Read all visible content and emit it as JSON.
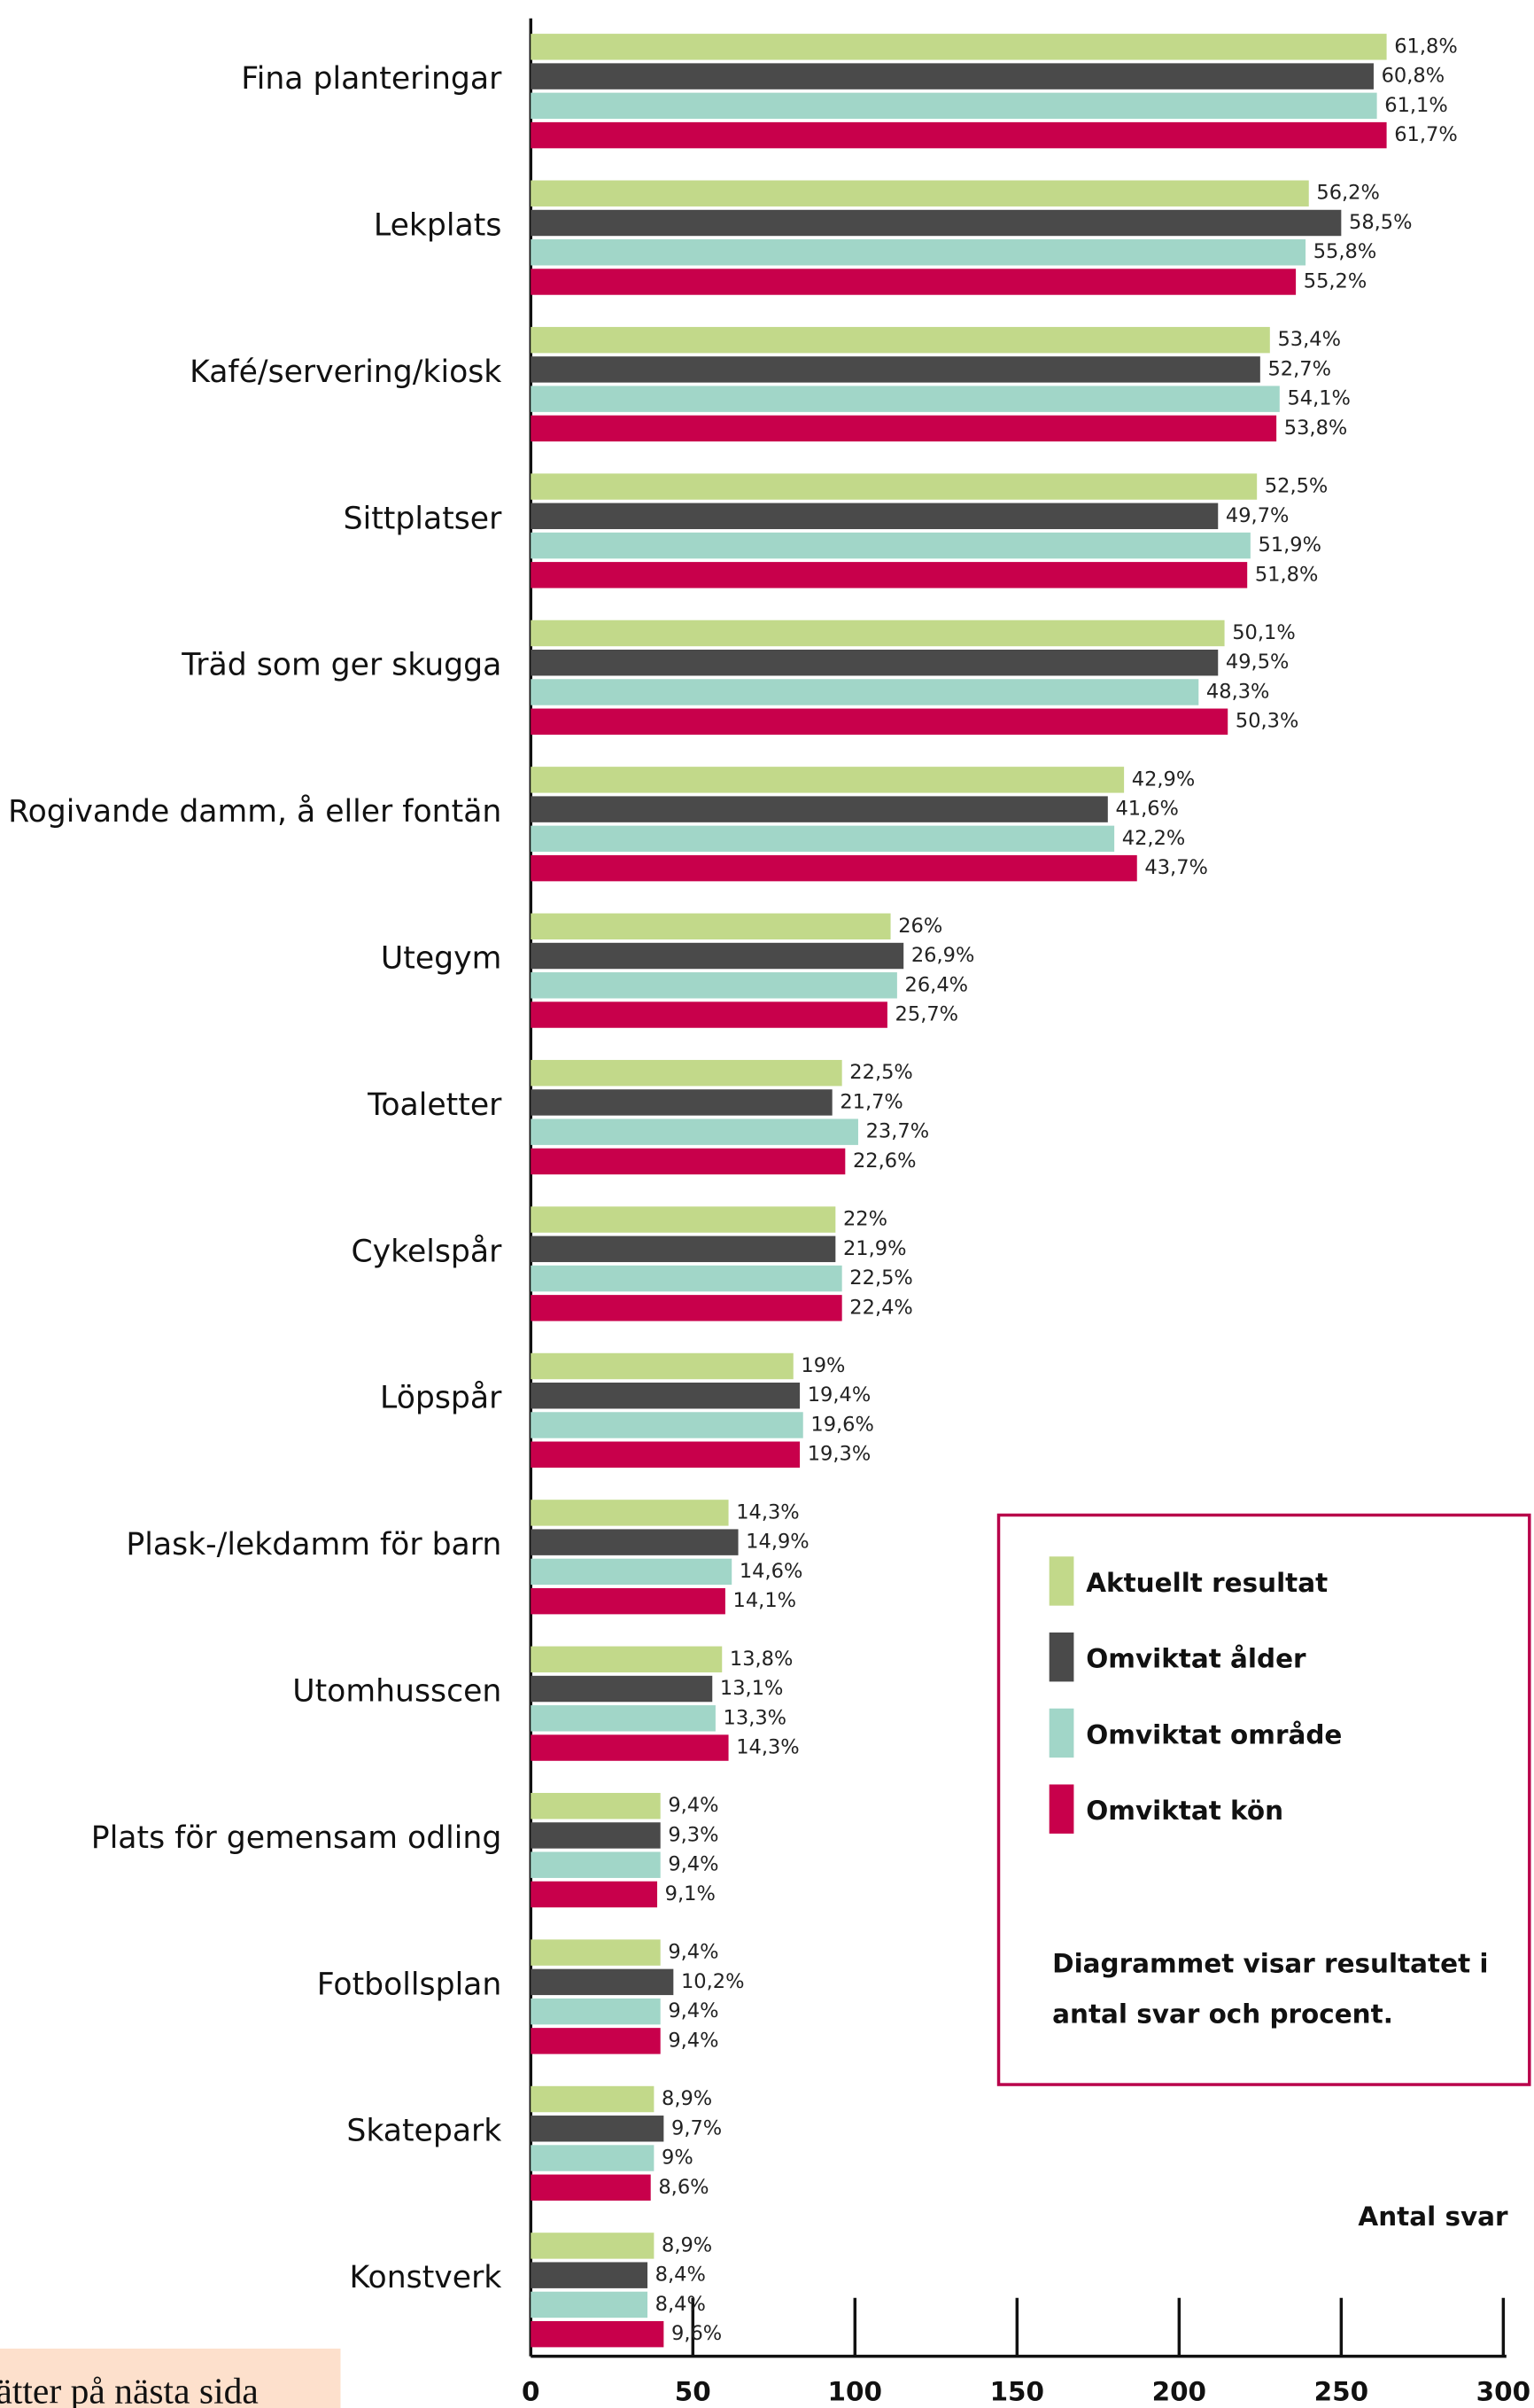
{
  "chart_data": {
    "type": "barh",
    "categories": [
      "Fina planteringar",
      "Lekplats",
      "Kafé/servering/kiosk",
      "Sittplatser",
      "Träd som ger skugga",
      "Rogivande damm, å eller fontän",
      "Utegym",
      "Toaletter",
      "Cykelspår",
      "Löpspår",
      "Plask-/lekdamm för barn",
      "Utomhusscen",
      "Plats för gemensam odling",
      "Fotbollsplan",
      "Skatepark",
      "Konstverk"
    ],
    "series": [
      {
        "name": "Aktuellt resultat",
        "color": "#c2d98a",
        "values": [
          264,
          240,
          228,
          224,
          214,
          183,
          111,
          96,
          94,
          81,
          61,
          59,
          40,
          40,
          38,
          38
        ],
        "percent_labels": [
          "61,8%",
          "56,2%",
          "53,4%",
          "52,5%",
          "50,1%",
          "42,9%",
          "26%",
          "22,5%",
          "22%",
          "19%",
          "14,3%",
          "13,8%",
          "9,4%",
          "9,4%",
          "8,9%",
          "8,9%"
        ]
      },
      {
        "name": "Omviktat ålder",
        "color": "#4a4a4a",
        "values": [
          260,
          250,
          225,
          212,
          212,
          178,
          115,
          93,
          94,
          83,
          64,
          56,
          40,
          44,
          41,
          36
        ],
        "percent_labels": [
          "60,8%",
          "58,5%",
          "52,7%",
          "49,7%",
          "49,5%",
          "41,6%",
          "26,9%",
          "21,7%",
          "21,9%",
          "19,4%",
          "14,9%",
          "13,1%",
          "9,3%",
          "10,2%",
          "9,7%",
          "8,4%"
        ]
      },
      {
        "name": "Omviktat område",
        "color": "#a1d6c8",
        "values": [
          261,
          239,
          231,
          222,
          206,
          180,
          113,
          101,
          96,
          84,
          62,
          57,
          40,
          40,
          38,
          36
        ],
        "percent_labels": [
          "61,1%",
          "55,8%",
          "54,1%",
          "51,9%",
          "48,3%",
          "42,2%",
          "26,4%",
          "23,7%",
          "22,5%",
          "19,6%",
          "14,6%",
          "13,3%",
          "9,4%",
          "9,4%",
          "9%",
          "8,4%"
        ]
      },
      {
        "name": "Omviktat kön",
        "color": "#c8004b",
        "values": [
          264,
          236,
          230,
          221,
          215,
          187,
          110,
          97,
          96,
          83,
          60,
          61,
          39,
          40,
          37,
          41
        ],
        "percent_labels": [
          "61,7%",
          "55,2%",
          "53,8%",
          "51,8%",
          "50,3%",
          "43,7%",
          "25,7%",
          "22,6%",
          "22,4%",
          "19,3%",
          "14,1%",
          "14,3%",
          "9,1%",
          "9,4%",
          "8,6%",
          "9,6%"
        ]
      }
    ],
    "xlabel": "Antal svar",
    "xlim": [
      0,
      300
    ],
    "xticks": [
      0,
      50,
      100,
      150,
      200,
      250,
      300
    ],
    "note": [
      "Diagrammet visar resultatet i",
      "antal svar och procent."
    ],
    "legend_position": "lower right",
    "footer_note": "sätter på nästa sida"
  }
}
